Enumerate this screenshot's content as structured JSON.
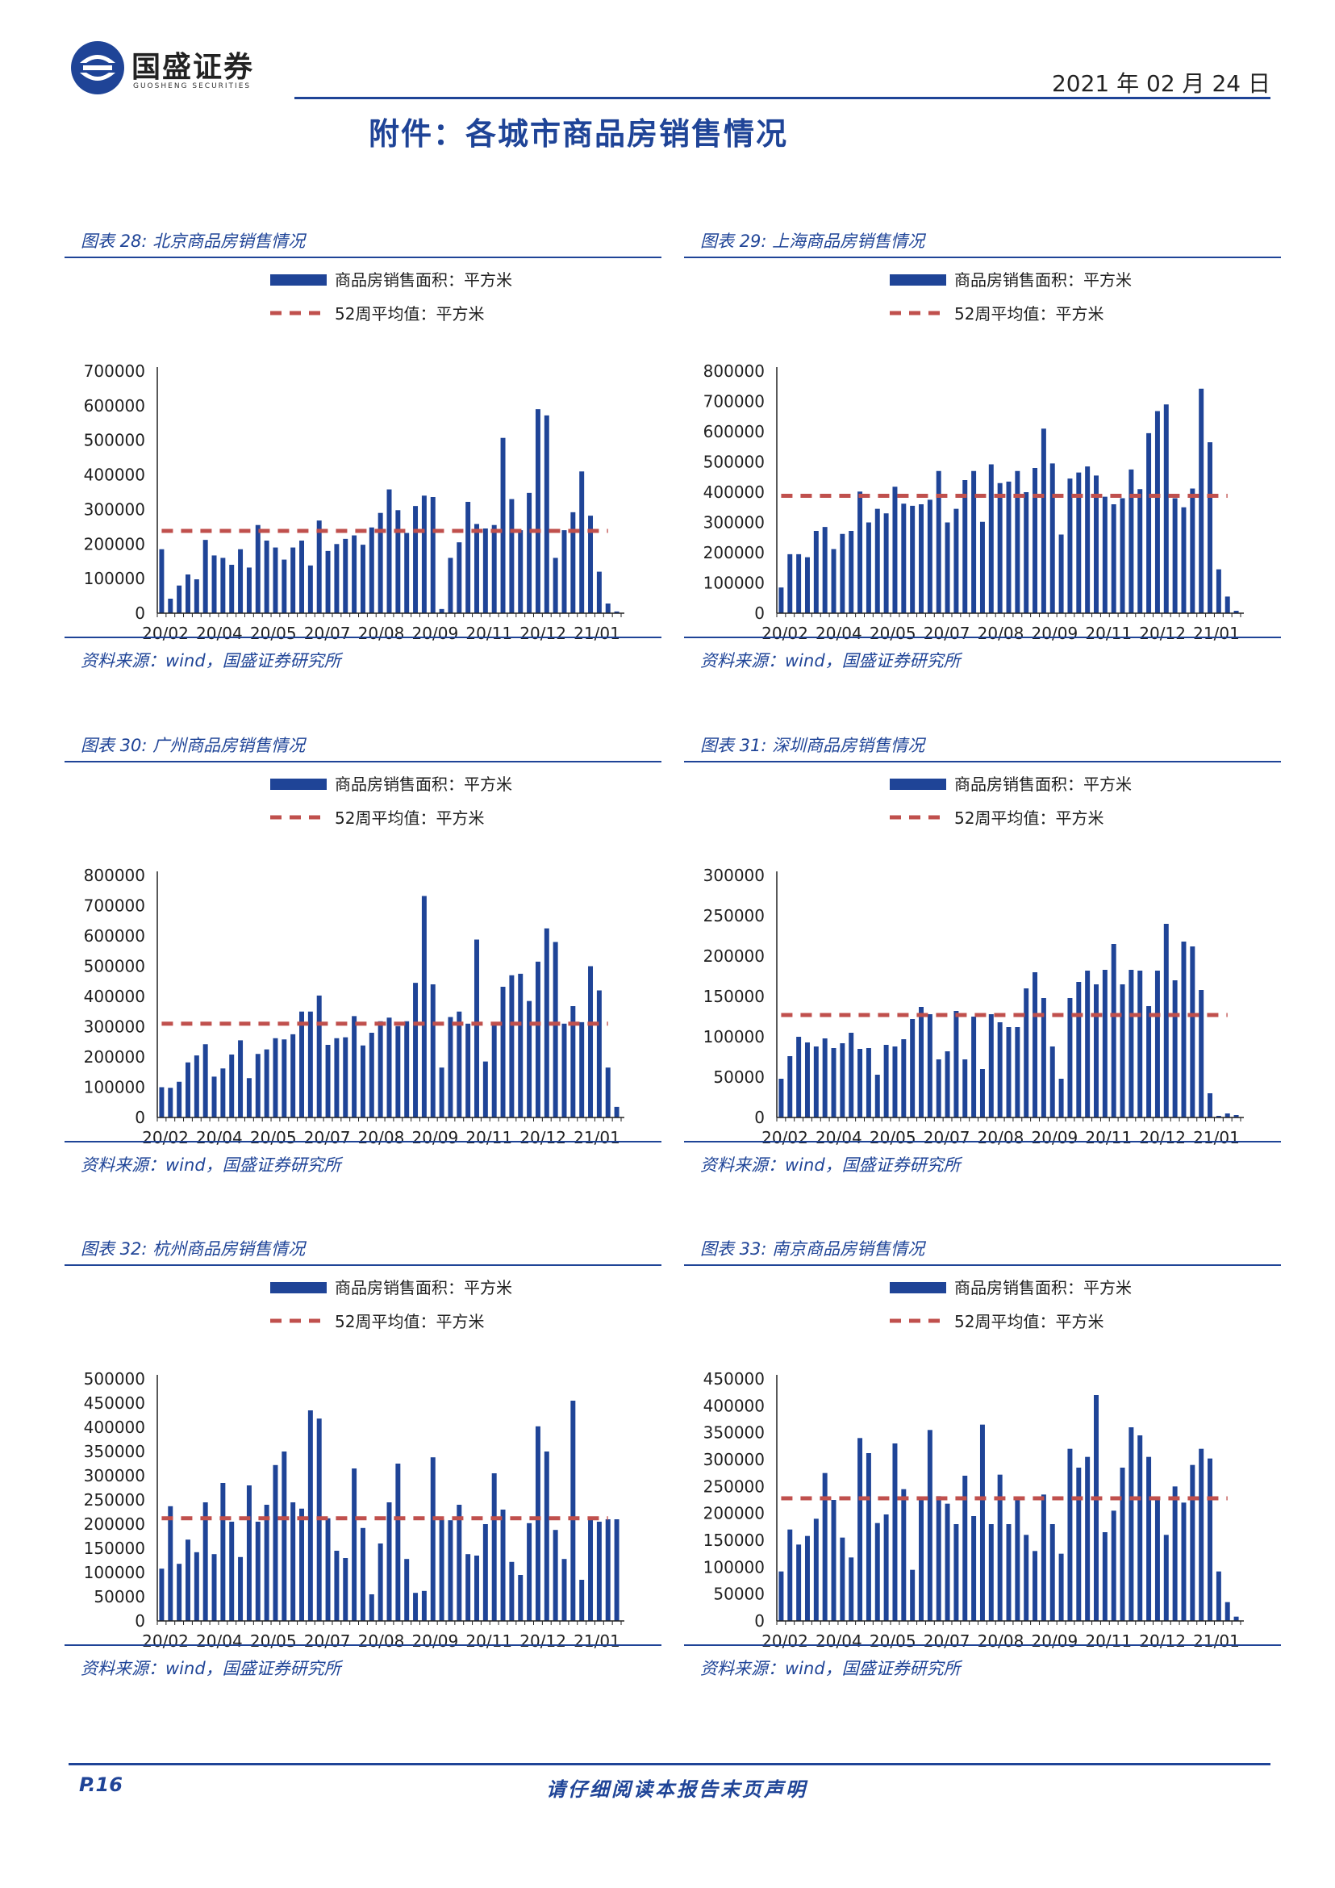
{
  "header": {
    "brand_cn": "国盛证券",
    "brand_en": "GUOSHENG SECURITIES",
    "date": "2021 年 02 月 24 日",
    "page_title": "附件：各城市商品房销售情况"
  },
  "footer": {
    "page_number": "P.16",
    "disclaimer": "请仔细阅读本报告末页声明"
  },
  "colors": {
    "bar": "#1f4497",
    "avg_line": "#c0504d",
    "accent": "#1f4497"
  },
  "panels": [
    {
      "caption": "图表 28:  北京商品房销售情况",
      "source": "资料来源：wind，国盛证券研究所"
    },
    {
      "caption": "图表 29:  上海商品房销售情况",
      "source": "资料来源：wind，国盛证券研究所"
    },
    {
      "caption": "图表 30:  广州商品房销售情况",
      "source": "资料来源：wind，国盛证券研究所"
    },
    {
      "caption": "图表 31:  深圳商品房销售情况",
      "source": "资料来源：wind，国盛证券研究所"
    },
    {
      "caption": "图表 32:  杭州商品房销售情况",
      "source": "资料来源：wind，国盛证券研究所"
    },
    {
      "caption": "图表 33:  南京商品房销售情况",
      "source": "资料来源：wind，国盛证券研究所"
    }
  ],
  "chart_data": [
    {
      "type": "bar",
      "series": [
        {
          "name": "商品房销售面积：平方米",
          "kind": "bar",
          "values": [
            185000,
            42000,
            80000,
            112000,
            98000,
            212000,
            167000,
            160000,
            140000,
            185000,
            132000,
            255000,
            210000,
            190000,
            155000,
            190000,
            210000,
            138000,
            268000,
            180000,
            200000,
            215000,
            225000,
            198000,
            248000,
            290000,
            358000,
            298000,
            232000,
            310000,
            340000,
            336000,
            12000,
            160000,
            205000,
            322000,
            258000,
            245000,
            255000,
            507000,
            330000,
            240000,
            348000,
            590000,
            572000,
            160000,
            240000,
            292000,
            410000,
            282000,
            120000,
            28000,
            5000
          ]
        },
        {
          "name": "52周平均值：平方米",
          "kind": "line",
          "value": 238000
        }
      ],
      "x_tick_labels": [
        "20/02",
        "20/04",
        "20/05",
        "20/07",
        "20/08",
        "20/09",
        "20/11",
        "20/12",
        "21/01"
      ],
      "y_ticks": [
        0,
        100000,
        200000,
        300000,
        400000,
        500000,
        600000,
        700000
      ],
      "ylim": [
        0,
        700000
      ]
    },
    {
      "type": "bar",
      "series": [
        {
          "name": "商品房销售面积：平方米",
          "kind": "bar",
          "values": [
            85000,
            195000,
            195000,
            185000,
            272000,
            285000,
            212000,
            262000,
            272000,
            402000,
            300000,
            345000,
            330000,
            418000,
            362000,
            355000,
            360000,
            375000,
            470000,
            300000,
            345000,
            440000,
            470000,
            302000,
            492000,
            430000,
            435000,
            470000,
            400000,
            480000,
            610000,
            495000,
            260000,
            445000,
            465000,
            485000,
            455000,
            385000,
            360000,
            380000,
            475000,
            410000,
            595000,
            668000,
            690000,
            380000,
            350000,
            412000,
            742000,
            565000,
            145000,
            55000,
            8000
          ]
        },
        {
          "name": "52周平均值：平方米",
          "kind": "line",
          "value": 388000
        }
      ],
      "x_tick_labels": [
        "20/02",
        "20/04",
        "20/05",
        "20/07",
        "20/08",
        "20/09",
        "20/11",
        "20/12",
        "21/01"
      ],
      "y_ticks": [
        0,
        100000,
        200000,
        300000,
        400000,
        500000,
        600000,
        700000,
        800000
      ],
      "ylim": [
        0,
        800000
      ]
    },
    {
      "type": "bar",
      "series": [
        {
          "name": "商品房销售面积：平方米",
          "kind": "bar",
          "values": [
            100000,
            98000,
            118000,
            182000,
            205000,
            242000,
            135000,
            162000,
            208000,
            255000,
            130000,
            210000,
            225000,
            262000,
            258000,
            275000,
            350000,
            350000,
            403000,
            240000,
            262000,
            265000,
            335000,
            238000,
            280000,
            318000,
            330000,
            302000,
            318000,
            445000,
            732000,
            440000,
            165000,
            332000,
            350000,
            310000,
            588000,
            185000,
            305000,
            432000,
            470000,
            475000,
            385000,
            515000,
            625000,
            580000,
            310000,
            368000,
            315000,
            500000,
            420000,
            165000,
            35000
          ]
        },
        {
          "name": "52周平均值：平方米",
          "kind": "line",
          "value": 310000
        }
      ],
      "x_tick_labels": [
        "20/02",
        "20/04",
        "20/05",
        "20/07",
        "20/08",
        "20/09",
        "20/11",
        "20/12",
        "21/01"
      ],
      "y_ticks": [
        0,
        100000,
        200000,
        300000,
        400000,
        500000,
        600000,
        700000,
        800000
      ],
      "ylim": [
        0,
        800000
      ]
    },
    {
      "type": "bar",
      "series": [
        {
          "name": "商品房销售面积：平方米",
          "kind": "bar",
          "values": [
            48000,
            76000,
            100000,
            93000,
            88000,
            98000,
            86000,
            92000,
            105000,
            85000,
            86000,
            53000,
            90000,
            88000,
            97000,
            122000,
            137000,
            128000,
            72000,
            82000,
            132000,
            72000,
            125000,
            60000,
            128000,
            118000,
            112000,
            112000,
            160000,
            180000,
            148000,
            88000,
            48000,
            148000,
            168000,
            182000,
            165000,
            183000,
            215000,
            165000,
            183000,
            182000,
            138000,
            182000,
            240000,
            170000,
            218000,
            212000,
            158000,
            30000,
            2000,
            5000,
            3000
          ]
        },
        {
          "name": "52周平均值：平方米",
          "kind": "line",
          "value": 127000
        }
      ],
      "x_tick_labels": [
        "20/02",
        "20/04",
        "20/05",
        "20/07",
        "20/08",
        "20/09",
        "20/11",
        "20/12",
        "21/01"
      ],
      "y_ticks": [
        0,
        50000,
        100000,
        150000,
        200000,
        250000,
        300000
      ],
      "ylim": [
        0,
        300000
      ]
    },
    {
      "type": "bar",
      "series": [
        {
          "name": "商品房销售面积：平方米",
          "kind": "bar",
          "values": [
            108000,
            237000,
            118000,
            168000,
            142000,
            245000,
            138000,
            285000,
            205000,
            132000,
            280000,
            205000,
            240000,
            322000,
            350000,
            245000,
            232000,
            435000,
            418000,
            212000,
            145000,
            130000,
            315000,
            192000,
            55000,
            160000,
            245000,
            325000,
            128000,
            58000,
            62000,
            338000,
            210000,
            208000,
            240000,
            138000,
            135000,
            200000,
            305000,
            230000,
            122000,
            95000,
            202000,
            402000,
            350000,
            188000,
            128000,
            455000,
            85000,
            215000,
            205000,
            210000,
            210000
          ]
        },
        {
          "name": "52周平均值：平方米",
          "kind": "line",
          "value": 212000
        }
      ],
      "x_tick_labels": [
        "20/02",
        "20/04",
        "20/05",
        "20/07",
        "20/08",
        "20/09",
        "20/11",
        "20/12",
        "21/01"
      ],
      "y_ticks": [
        0,
        50000,
        100000,
        150000,
        200000,
        250000,
        300000,
        350000,
        400000,
        450000,
        500000
      ],
      "ylim": [
        0,
        500000
      ]
    },
    {
      "type": "bar",
      "series": [
        {
          "name": "商品房销售面积：平方米",
          "kind": "bar",
          "values": [
            92000,
            170000,
            142000,
            158000,
            190000,
            275000,
            225000,
            155000,
            118000,
            340000,
            312000,
            182000,
            198000,
            330000,
            245000,
            95000,
            225000,
            355000,
            232000,
            218000,
            180000,
            270000,
            195000,
            365000,
            180000,
            272000,
            180000,
            230000,
            160000,
            130000,
            235000,
            180000,
            125000,
            320000,
            285000,
            305000,
            420000,
            165000,
            205000,
            285000,
            360000,
            345000,
            305000,
            225000,
            160000,
            250000,
            220000,
            290000,
            320000,
            302000,
            92000,
            35000,
            8000
          ]
        },
        {
          "name": "52周平均值：平方米",
          "kind": "line",
          "value": 228000
        }
      ],
      "x_tick_labels": [
        "20/02",
        "20/04",
        "20/05",
        "20/07",
        "20/08",
        "20/09",
        "20/11",
        "20/12",
        "21/01"
      ],
      "y_ticks": [
        0,
        50000,
        100000,
        150000,
        200000,
        250000,
        300000,
        350000,
        400000,
        450000
      ],
      "ylim": [
        0,
        450000
      ]
    }
  ]
}
